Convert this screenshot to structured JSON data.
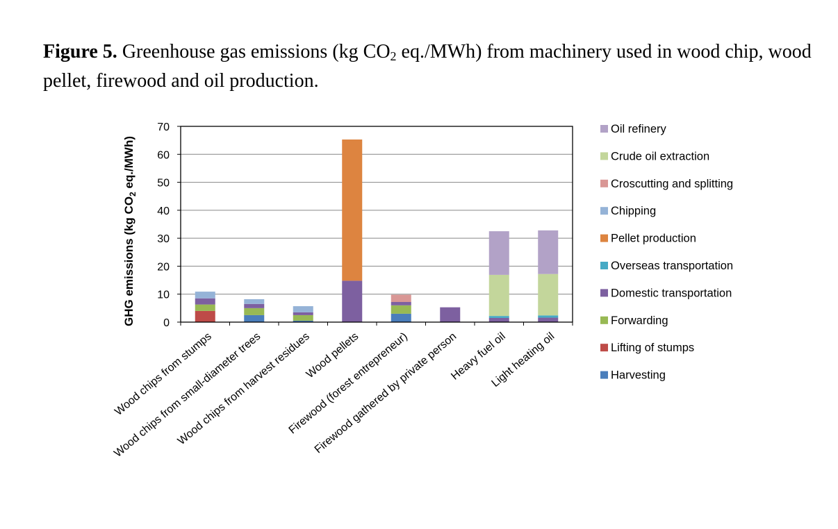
{
  "caption": {
    "label": "Figure 5.",
    "text_before_sub": " Greenhouse gas emissions (kg CO",
    "sub": "2",
    "text_after_sub": " eq./MWh) from machinery used in wood chip, wood pellet, firewood and oil production."
  },
  "chart_data": {
    "type": "bar",
    "stacked": true,
    "ylabel_main": "GHG emissions (kg CO",
    "ylabel_sub": "2",
    "ylabel_end": " eq./MWh)",
    "ylim": [
      0,
      70
    ],
    "yticks": [
      0,
      10,
      20,
      30,
      40,
      50,
      60,
      70
    ],
    "grid": true,
    "legend_position": "right",
    "categories": [
      "Wood chips from stumps",
      "Wood chips from small-diameter trees",
      "Wood chips from harvest residues",
      "Wood pellets",
      "Firewood (forest entrepreneur)",
      "Firewood gathered by private person",
      "Heavy fuel oil",
      "Light heating oil"
    ],
    "series": [
      {
        "name": "Harvesting",
        "color": "#4a7ebb",
        "values": [
          0,
          2.5,
          0.5,
          0,
          3.0,
          0,
          0,
          0
        ]
      },
      {
        "name": "Lifting of stumps",
        "color": "#be4b48",
        "values": [
          4.0,
          0,
          0,
          0,
          0,
          0,
          0,
          0
        ]
      },
      {
        "name": "Forwarding",
        "color": "#98b954",
        "values": [
          2.3,
          2.5,
          2.0,
          0,
          3.0,
          0,
          0,
          0
        ]
      },
      {
        "name": "Domestic transportation",
        "color": "#7d60a0",
        "values": [
          2.2,
          1.5,
          1.0,
          14.8,
          1.2,
          5.3,
          1.5,
          1.6
        ]
      },
      {
        "name": "Overseas transportation",
        "color": "#46aac5",
        "values": [
          0,
          0,
          0,
          0,
          0,
          0,
          0.7,
          0.8
        ]
      },
      {
        "name": "Pellet production",
        "color": "#dd8440",
        "values": [
          0,
          0,
          0,
          50.5,
          0,
          0,
          0,
          0
        ]
      },
      {
        "name": "Chipping",
        "color": "#95b3d7",
        "values": [
          2.4,
          1.7,
          2.2,
          0,
          0,
          0,
          0,
          0
        ]
      },
      {
        "name": "Croscutting and splitting",
        "color": "#d99795",
        "values": [
          0,
          0,
          0,
          0,
          2.6,
          0,
          0,
          0
        ]
      },
      {
        "name": "Crude oil extraction",
        "color": "#c3d69b",
        "values": [
          0,
          0,
          0,
          0,
          0,
          0,
          14.7,
          14.8
        ]
      },
      {
        "name": "Oil refinery",
        "color": "#b2a2c7",
        "values": [
          0,
          0,
          0,
          0,
          0,
          0,
          15.6,
          15.6
        ]
      }
    ],
    "legend_order": [
      "Oil refinery",
      "Crude oil extraction",
      "Croscutting and splitting",
      "Chipping",
      "Pellet production",
      "Overseas transportation",
      "Domestic transportation",
      "Forwarding",
      "Lifting of stumps",
      "Harvesting"
    ]
  }
}
